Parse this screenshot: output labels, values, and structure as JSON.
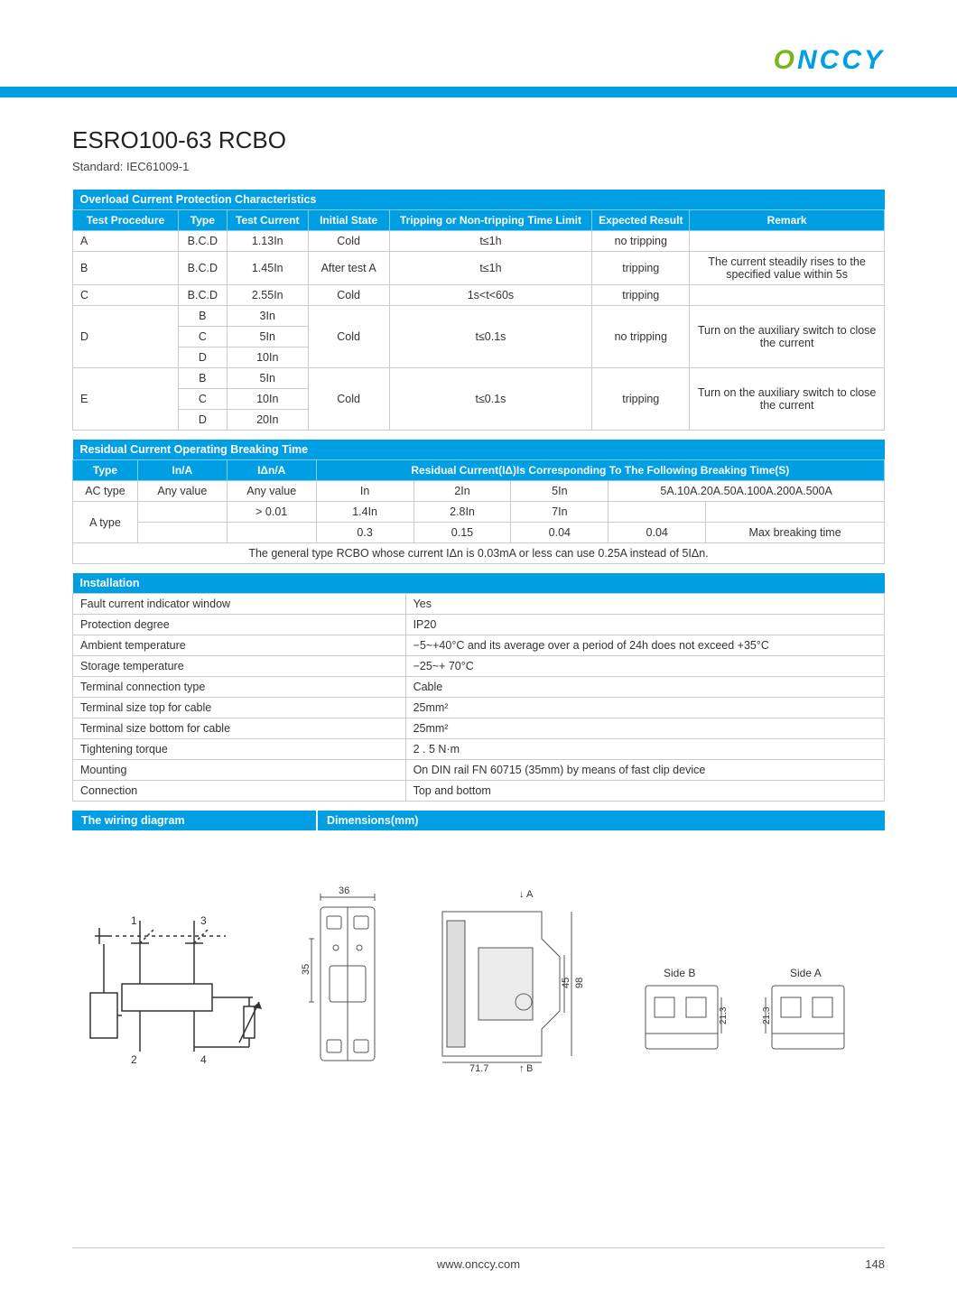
{
  "brand": "ONCCY",
  "colors": {
    "accent": "#009fe3",
    "accent_green": "#7ab51d",
    "border": "#cccccc",
    "text": "#333333"
  },
  "title": "ESRO100-63 RCBO",
  "subtitle": "Standard: IEC61009-1",
  "table1": {
    "title": "Overload Current Protection Characteristics",
    "headers": [
      "Test  Procedure",
      "Type",
      "Test Current",
      "Initial State",
      "Tripping or Non-tripping Time Limit",
      "Expected Result",
      "Remark"
    ],
    "rows": [
      {
        "proc": "A",
        "type": "B.C.D",
        "current": "1.13In",
        "state": "Cold",
        "limit": "t≤1h",
        "result": "no tripping",
        "remark": ""
      },
      {
        "proc": "B",
        "type": "B.C.D",
        "current": "1.45In",
        "state": "After test A",
        "limit": "t≤1h",
        "result": "tripping",
        "remark": "The current steadily rises to the specified value within 5s"
      },
      {
        "proc": "C",
        "type": "B.C.D",
        "current": "2.55In",
        "state": "Cold",
        "limit": "1s<t<60s",
        "result": "tripping",
        "remark": ""
      }
    ],
    "rowD": {
      "proc": "D",
      "types": [
        "B",
        "C",
        "D"
      ],
      "currents": [
        "3In",
        "5In",
        "10In"
      ],
      "state": "Cold",
      "limit": "t≤0.1s",
      "result": "no tripping",
      "remark": "Turn on the auxiliary switch to close the current"
    },
    "rowE": {
      "proc": "E",
      "types": [
        "B",
        "C",
        "D"
      ],
      "currents": [
        "5In",
        "10In",
        "20In"
      ],
      "state": "Cold",
      "limit": "t≤0.1s",
      "result": "tripping",
      "remark": "Turn on the auxiliary switch to close the current"
    }
  },
  "table2": {
    "title": "Residual Current Operating Breaking Time",
    "headers": [
      "Type",
      "In/A",
      "IΔn/A",
      "Residual Current(IΔ)Is Corresponding To The Following Breaking Time(S)"
    ],
    "row_ac": {
      "type": "AC type",
      "in": "Any value",
      "idn": "Any value",
      "cells": [
        "In",
        "2In",
        "5In",
        "5A.10A.20A.50A.100A.200A.500A"
      ]
    },
    "row_a1": {
      "type": "A type",
      "in": "",
      "idn": "> 0.01",
      "cells": [
        "1.4In",
        "2.8In",
        "7In",
        ""
      ]
    },
    "row_a2": {
      "cells": [
        "0.3",
        "0.15",
        "0.04",
        "0.04",
        "Max breaking time"
      ]
    },
    "note": "The general type RCBO whose current IΔn is 0.03mA or less can use 0.25A instead of 5IΔn."
  },
  "table3": {
    "title": "Installation",
    "rows": [
      [
        "Fault current indicator window",
        "Yes"
      ],
      [
        "Protection degree",
        "IP20"
      ],
      [
        "Ambient temperature",
        "−5~+40°C and its average over a period of 24h does not exceed +35°C"
      ],
      [
        "Storage temperature",
        "−25~+ 70°C"
      ],
      [
        "Terminal connection type",
        "Cable"
      ],
      [
        "Terminal size top for cable",
        "25mm²"
      ],
      [
        "Terminal size bottom for cable",
        "25mm²"
      ],
      [
        "Tightening torque",
        "2 . 5 N·m"
      ],
      [
        "Mounting",
        "On DIN rail FN 60715 (35mm) by means of fast clip device"
      ],
      [
        "Connection",
        "Top and bottom"
      ]
    ]
  },
  "diagram_headers": {
    "wiring": "The wiring diagram",
    "dimensions": "Dimensions(mm)"
  },
  "dimensions": {
    "front_width": "36",
    "front_gap": "35",
    "depth": "71.7",
    "height": "98",
    "h2": "45",
    "arrow_a": "A",
    "arrow_b": "B",
    "side_b": "Side B",
    "side_a": "Side A",
    "side_h": "21.3"
  },
  "wiring": {
    "t1": "1",
    "t3": "3",
    "t2": "2",
    "t4": "4"
  },
  "footer": {
    "url": "www.onccy.com",
    "page": "148"
  }
}
